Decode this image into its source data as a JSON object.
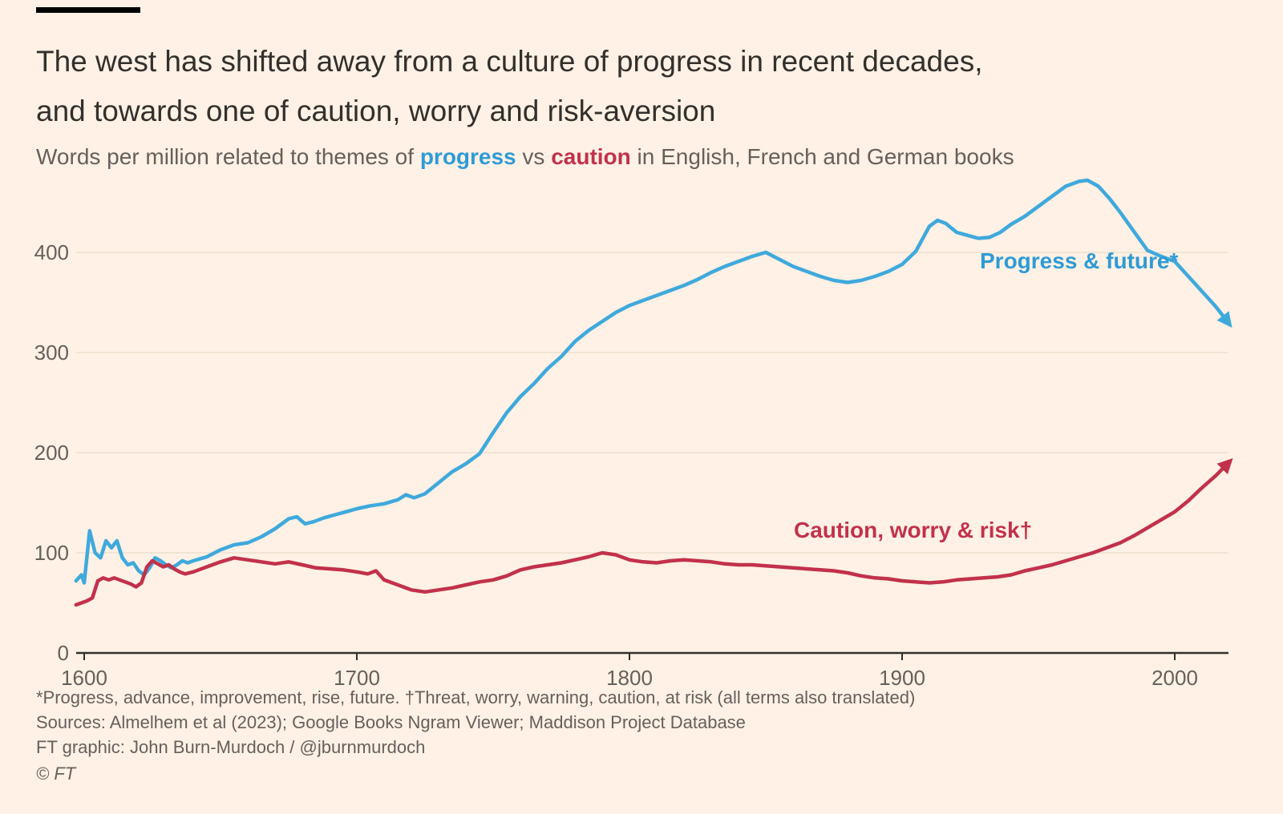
{
  "header": {
    "title_line1": "The west has shifted away from a culture of progress in recent decades,",
    "title_line2": "and towards one of caution, worry and risk-aversion",
    "subtitle": {
      "prefix": "Words per million related to themes of ",
      "progress_word": "progress",
      "mid": " vs ",
      "caution_word": "caution",
      "suffix": " in English, French and German books"
    }
  },
  "footer": {
    "footnote": "*Progress, advance, improvement, rise, future. †Threat, worry, warning, caution, at risk (all terms also translated)",
    "sources": "Sources: Almelhem et al (2023); Google Books Ngram Viewer; Maddison Project Database",
    "credit": "FT graphic: John Burn-Murdoch / @jburnmurdoch",
    "copyright": "© FT"
  },
  "colors": {
    "background": "#FFF1E5",
    "title": "#33302C",
    "subtitle_text": "#66605C",
    "progress_blue": "#3FA9DC",
    "caution_red": "#C2314B",
    "gridline": "#EDDFCE",
    "axis": "#33302C",
    "tick_text": "#66605C"
  },
  "chart_data": {
    "type": "line",
    "title": "The west has shifted away from a culture of progress in recent decades, and towards one of caution, worry and risk-aversion",
    "subtitle": "Words per million related to themes of progress vs caution in English, French and German books",
    "xlabel": "",
    "ylabel": "Words per million",
    "xlim": [
      1597,
      2022
    ],
    "ylim": [
      0,
      480
    ],
    "xticks": [
      1600,
      1700,
      1800,
      1900,
      2000
    ],
    "yticks": [
      0,
      100,
      200,
      300,
      400
    ],
    "grid": "horizontal",
    "legend_position": "inline-annotations",
    "series": [
      {
        "name": "Progress & future*",
        "label": "Progress & future*",
        "color_key": "progress_blue",
        "arrow_end": true,
        "points": [
          [
            1597,
            72
          ],
          [
            1599,
            78
          ],
          [
            1600,
            70
          ],
          [
            1602,
            122
          ],
          [
            1604,
            100
          ],
          [
            1606,
            95
          ],
          [
            1608,
            112
          ],
          [
            1610,
            105
          ],
          [
            1612,
            112
          ],
          [
            1614,
            95
          ],
          [
            1616,
            88
          ],
          [
            1618,
            90
          ],
          [
            1620,
            82
          ],
          [
            1622,
            78
          ],
          [
            1624,
            85
          ],
          [
            1626,
            95
          ],
          [
            1628,
            92
          ],
          [
            1630,
            88
          ],
          [
            1632,
            85
          ],
          [
            1634,
            88
          ],
          [
            1636,
            92
          ],
          [
            1638,
            90
          ],
          [
            1640,
            92
          ],
          [
            1645,
            96
          ],
          [
            1650,
            103
          ],
          [
            1655,
            108
          ],
          [
            1660,
            110
          ],
          [
            1665,
            116
          ],
          [
            1670,
            124
          ],
          [
            1675,
            134
          ],
          [
            1678,
            136
          ],
          [
            1681,
            129
          ],
          [
            1684,
            131
          ],
          [
            1688,
            135
          ],
          [
            1692,
            138
          ],
          [
            1696,
            141
          ],
          [
            1700,
            144
          ],
          [
            1705,
            147
          ],
          [
            1710,
            149
          ],
          [
            1715,
            153
          ],
          [
            1718,
            158
          ],
          [
            1721,
            155
          ],
          [
            1725,
            159
          ],
          [
            1730,
            170
          ],
          [
            1735,
            181
          ],
          [
            1740,
            189
          ],
          [
            1745,
            199
          ],
          [
            1750,
            220
          ],
          [
            1755,
            240
          ],
          [
            1760,
            256
          ],
          [
            1765,
            269
          ],
          [
            1770,
            284
          ],
          [
            1775,
            296
          ],
          [
            1780,
            311
          ],
          [
            1785,
            322
          ],
          [
            1790,
            331
          ],
          [
            1795,
            340
          ],
          [
            1800,
            347
          ],
          [
            1805,
            352
          ],
          [
            1810,
            357
          ],
          [
            1815,
            362
          ],
          [
            1820,
            367
          ],
          [
            1825,
            373
          ],
          [
            1830,
            380
          ],
          [
            1835,
            386
          ],
          [
            1840,
            391
          ],
          [
            1845,
            396
          ],
          [
            1850,
            400
          ],
          [
            1855,
            393
          ],
          [
            1860,
            386
          ],
          [
            1865,
            381
          ],
          [
            1870,
            376
          ],
          [
            1875,
            372
          ],
          [
            1880,
            370
          ],
          [
            1885,
            372
          ],
          [
            1890,
            376
          ],
          [
            1895,
            381
          ],
          [
            1900,
            388
          ],
          [
            1905,
            401
          ],
          [
            1910,
            426
          ],
          [
            1913,
            432
          ],
          [
            1916,
            429
          ],
          [
            1920,
            420
          ],
          [
            1924,
            417
          ],
          [
            1928,
            414
          ],
          [
            1932,
            415
          ],
          [
            1936,
            420
          ],
          [
            1940,
            428
          ],
          [
            1945,
            436
          ],
          [
            1950,
            446
          ],
          [
            1955,
            456
          ],
          [
            1960,
            466
          ],
          [
            1965,
            471
          ],
          [
            1968,
            472
          ],
          [
            1972,
            466
          ],
          [
            1976,
            454
          ],
          [
            1980,
            440
          ],
          [
            1985,
            421
          ],
          [
            1990,
            402
          ],
          [
            1995,
            396
          ],
          [
            2000,
            391
          ],
          [
            2005,
            376
          ],
          [
            2010,
            361
          ],
          [
            2015,
            346
          ],
          [
            2019,
            332
          ]
        ]
      },
      {
        "name": "Caution, worry & risk†",
        "label": "Caution, worry & risk†",
        "color_key": "caution_red",
        "arrow_end": true,
        "points": [
          [
            1597,
            48
          ],
          [
            1599,
            50
          ],
          [
            1601,
            52
          ],
          [
            1603,
            55
          ],
          [
            1605,
            72
          ],
          [
            1607,
            75
          ],
          [
            1609,
            73
          ],
          [
            1611,
            75
          ],
          [
            1613,
            73
          ],
          [
            1615,
            71
          ],
          [
            1617,
            69
          ],
          [
            1619,
            66
          ],
          [
            1621,
            70
          ],
          [
            1623,
            86
          ],
          [
            1625,
            92
          ],
          [
            1627,
            89
          ],
          [
            1629,
            86
          ],
          [
            1631,
            88
          ],
          [
            1633,
            84
          ],
          [
            1635,
            81
          ],
          [
            1637,
            79
          ],
          [
            1640,
            81
          ],
          [
            1645,
            86
          ],
          [
            1650,
            91
          ],
          [
            1655,
            95
          ],
          [
            1660,
            93
          ],
          [
            1665,
            91
          ],
          [
            1670,
            89
          ],
          [
            1675,
            91
          ],
          [
            1680,
            88
          ],
          [
            1685,
            85
          ],
          [
            1690,
            84
          ],
          [
            1695,
            83
          ],
          [
            1700,
            81
          ],
          [
            1704,
            79
          ],
          [
            1707,
            82
          ],
          [
            1710,
            73
          ],
          [
            1715,
            68
          ],
          [
            1720,
            63
          ],
          [
            1725,
            61
          ],
          [
            1730,
            63
          ],
          [
            1735,
            65
          ],
          [
            1740,
            68
          ],
          [
            1745,
            71
          ],
          [
            1750,
            73
          ],
          [
            1755,
            77
          ],
          [
            1760,
            83
          ],
          [
            1765,
            86
          ],
          [
            1770,
            88
          ],
          [
            1775,
            90
          ],
          [
            1780,
            93
          ],
          [
            1785,
            96
          ],
          [
            1790,
            100
          ],
          [
            1795,
            98
          ],
          [
            1800,
            93
          ],
          [
            1805,
            91
          ],
          [
            1810,
            90
          ],
          [
            1815,
            92
          ],
          [
            1820,
            93
          ],
          [
            1825,
            92
          ],
          [
            1830,
            91
          ],
          [
            1835,
            89
          ],
          [
            1840,
            88
          ],
          [
            1845,
            88
          ],
          [
            1850,
            87
          ],
          [
            1855,
            86
          ],
          [
            1860,
            85
          ],
          [
            1865,
            84
          ],
          [
            1870,
            83
          ],
          [
            1875,
            82
          ],
          [
            1880,
            80
          ],
          [
            1885,
            77
          ],
          [
            1890,
            75
          ],
          [
            1895,
            74
          ],
          [
            1900,
            72
          ],
          [
            1905,
            71
          ],
          [
            1910,
            70
          ],
          [
            1915,
            71
          ],
          [
            1920,
            73
          ],
          [
            1925,
            74
          ],
          [
            1930,
            75
          ],
          [
            1935,
            76
          ],
          [
            1940,
            78
          ],
          [
            1945,
            82
          ],
          [
            1950,
            85
          ],
          [
            1955,
            88
          ],
          [
            1960,
            92
          ],
          [
            1965,
            96
          ],
          [
            1970,
            100
          ],
          [
            1975,
            105
          ],
          [
            1980,
            110
          ],
          [
            1985,
            117
          ],
          [
            1990,
            125
          ],
          [
            1995,
            133
          ],
          [
            2000,
            141
          ],
          [
            2005,
            152
          ],
          [
            2010,
            165
          ],
          [
            2015,
            177
          ],
          [
            2019,
            188
          ]
        ]
      }
    ]
  }
}
